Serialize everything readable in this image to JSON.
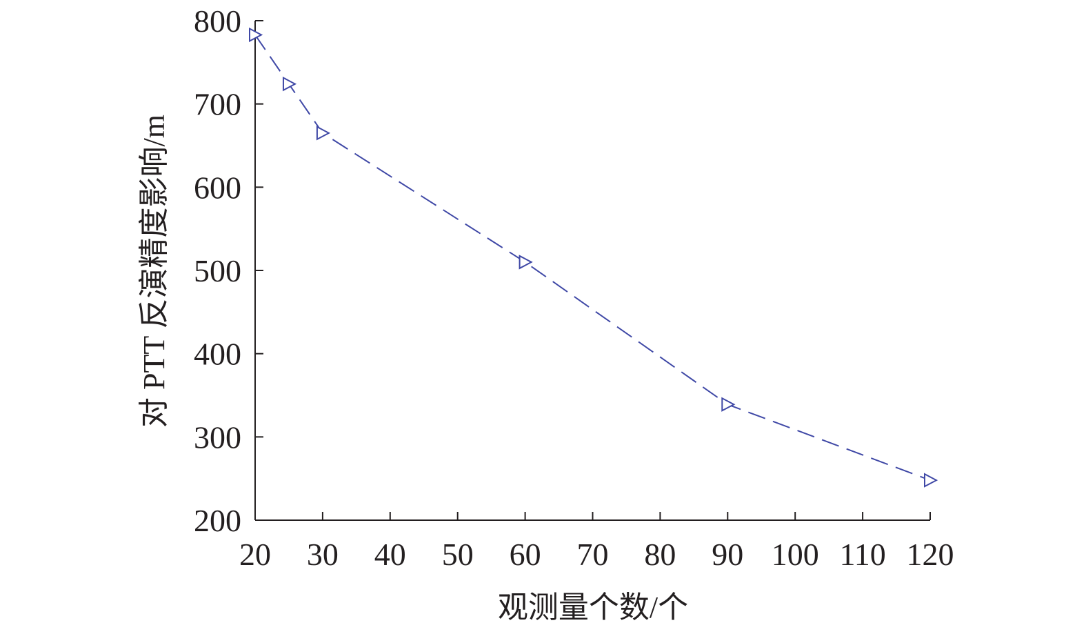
{
  "chart_data": {
    "type": "line",
    "xlabel": "观测量个数/个",
    "ylabel": "对 PTT 反演精度影响/m",
    "xlim": [
      20,
      120
    ],
    "ylim": [
      200,
      800
    ],
    "x_ticks": [
      20,
      30,
      40,
      50,
      60,
      70,
      80,
      90,
      100,
      110,
      120
    ],
    "y_ticks": [
      200,
      300,
      400,
      500,
      600,
      700,
      800
    ],
    "grid": false,
    "series": [
      {
        "x": [
          20,
          25,
          30,
          60,
          90,
          120
        ],
        "y": [
          783,
          724,
          665,
          510,
          339,
          248
        ],
        "color": "#3f48a6",
        "line_style": "dashed",
        "marker": "triangle-right"
      }
    ]
  }
}
